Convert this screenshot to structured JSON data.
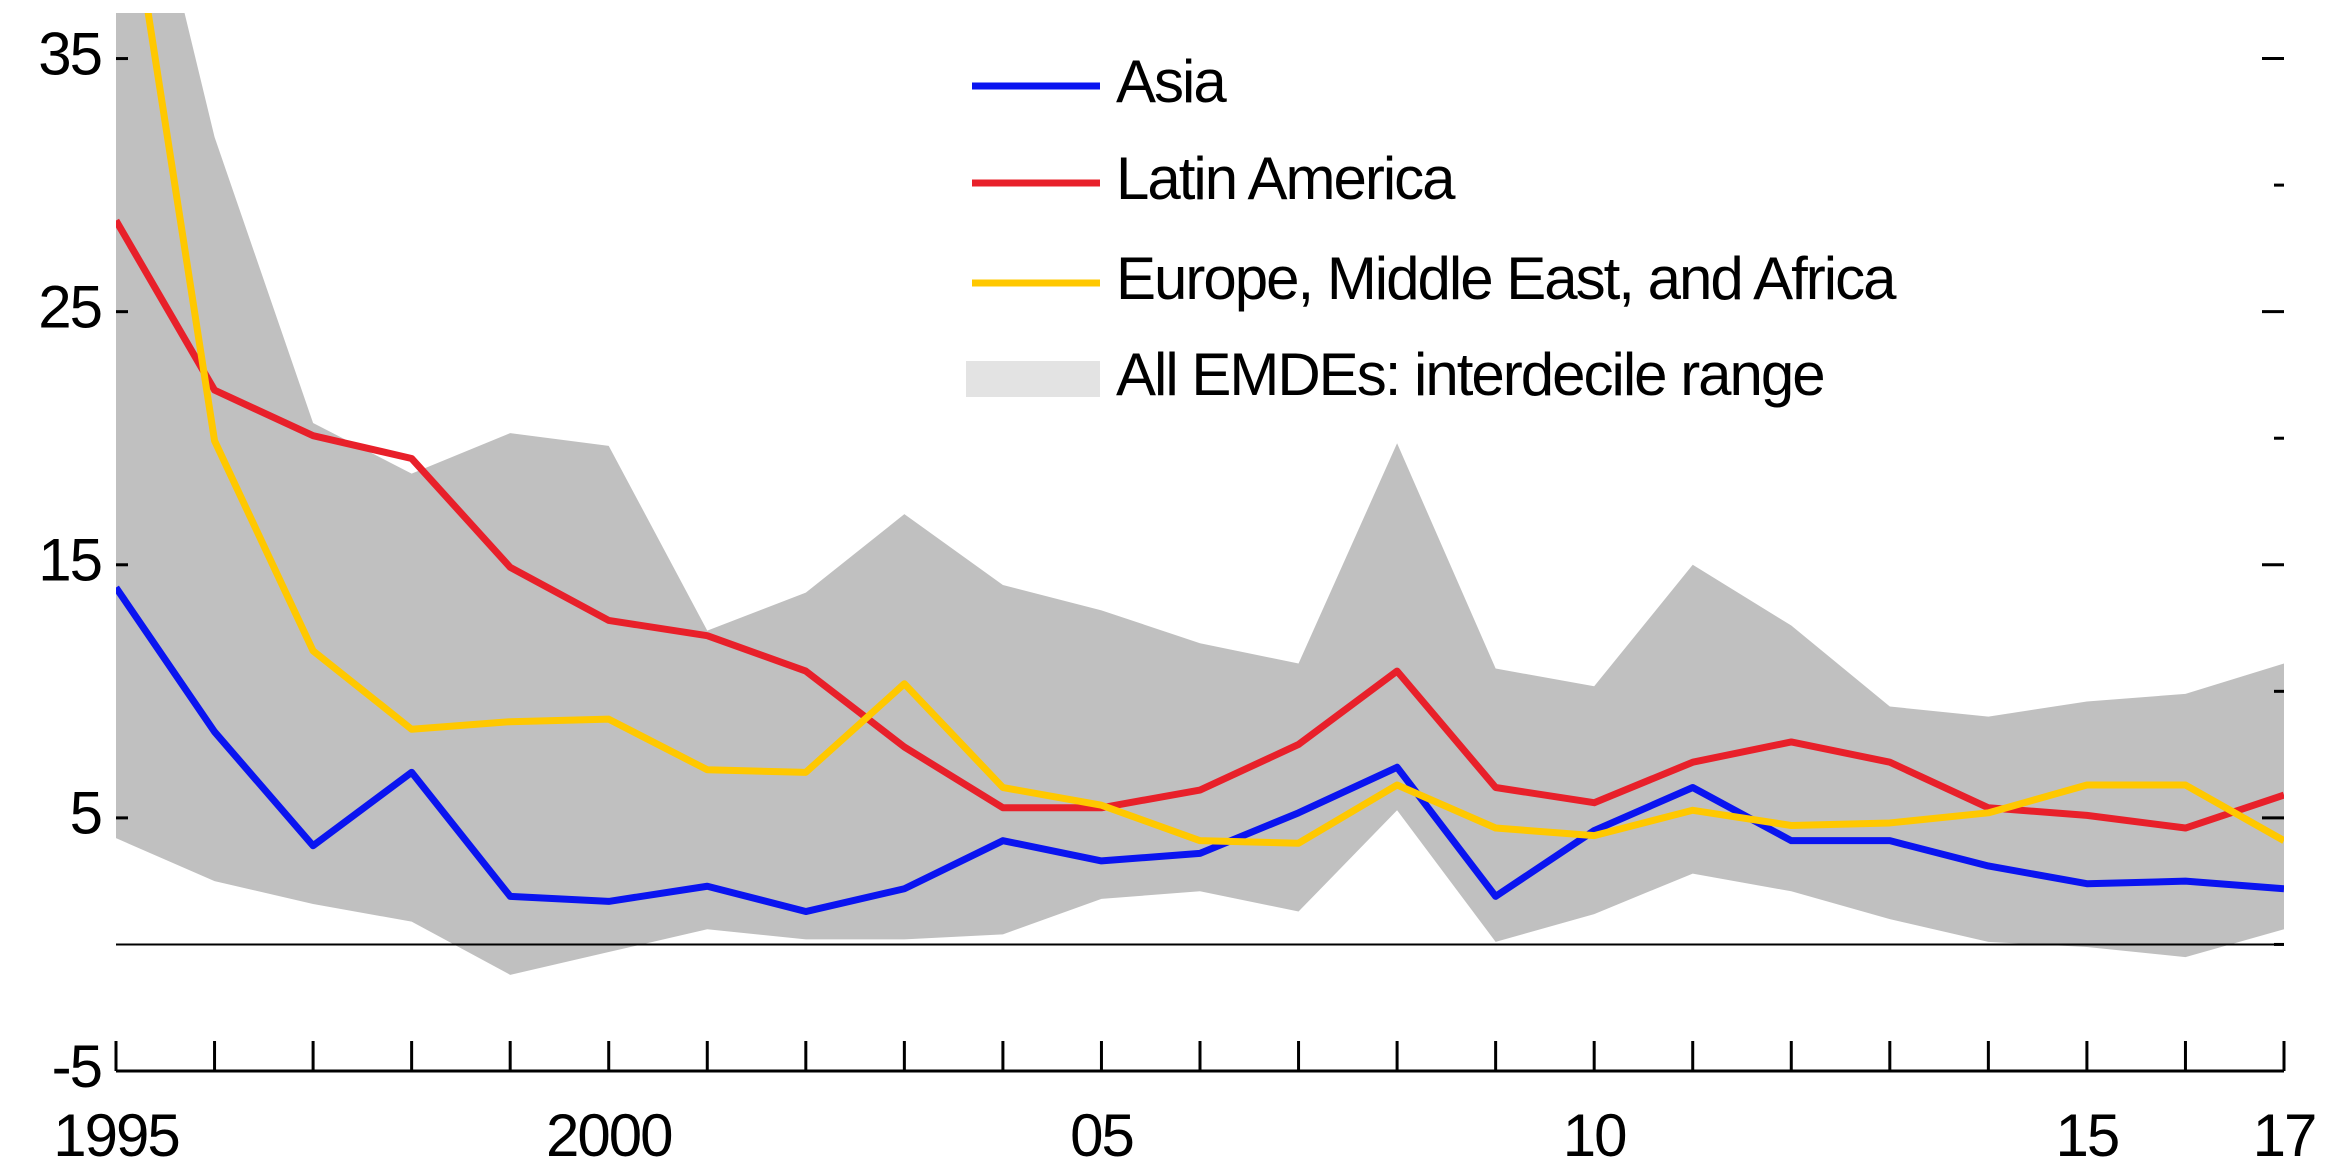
{
  "chart_data": {
    "type": "line",
    "categories": [
      "1995",
      null,
      null,
      null,
      null,
      "2000",
      null,
      null,
      null,
      null,
      "05",
      null,
      null,
      null,
      null,
      "10",
      null,
      null,
      null,
      null,
      "15",
      null,
      "17"
    ],
    "series": [
      {
        "name": "Asia",
        "color": "#0a14f0",
        "values": [
          14.1,
          8.4,
          3.9,
          6.8,
          1.9,
          1.7,
          2.3,
          1.3,
          2.2,
          4.1,
          3.3,
          3.6,
          5.2,
          7.0,
          1.9,
          4.5,
          6.2,
          4.1,
          4.1,
          3.1,
          2.4,
          2.5,
          2.2
        ]
      },
      {
        "name": "Latin America",
        "color": "#e8202a",
        "values": [
          28.6,
          21.9,
          20.1,
          19.2,
          14.9,
          12.8,
          12.2,
          10.8,
          7.8,
          5.4,
          5.4,
          6.1,
          7.9,
          10.8,
          6.2,
          5.6,
          7.2,
          8.0,
          7.2,
          5.4,
          5.1,
          4.6,
          5.9
        ]
      },
      {
        "name": "Europe, Middle East, and Africa",
        "color": "#ffc800",
        "values": [
          45,
          19.9,
          11.6,
          8.5,
          8.8,
          8.9,
          6.9,
          6.8,
          10.3,
          6.2,
          5.5,
          4.1,
          4.0,
          6.3,
          4.6,
          4.3,
          5.3,
          4.7,
          4.8,
          5.2,
          6.3,
          6.3,
          4.1
        ]
      }
    ],
    "band": {
      "name": "All EMDEs: interdecile range",
      "color": "#c0c0c0",
      "upper": [
        48,
        31.9,
        20.6,
        18.6,
        20.2,
        19.7,
        12.4,
        13.9,
        17.0,
        14.2,
        13.2,
        11.9,
        11.1,
        19.8,
        10.9,
        10.2,
        15.0,
        12.6,
        9.4,
        9.0,
        9.6,
        9.9,
        11.1
      ],
      "lower": [
        4.2,
        2.5,
        1.6,
        0.9,
        -1.2,
        -0.3,
        0.6,
        0.2,
        0.2,
        0.4,
        1.8,
        2.1,
        1.3,
        5.3,
        0.1,
        1.2,
        2.8,
        2.1,
        1.0,
        0.1,
        -0.1,
        -0.5,
        0.6
      ]
    },
    "ylim": [
      -5,
      36.8
    ],
    "yticks": [
      -5,
      5,
      15,
      25,
      35
    ],
    "y_minor_ticks": [
      0,
      10,
      20,
      30
    ],
    "zero_line": 0
  }
}
